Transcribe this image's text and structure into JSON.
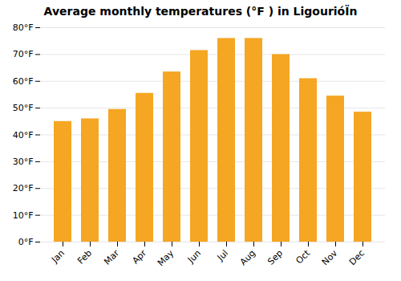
{
  "chart_data": {
    "type": "bar",
    "title": "Average monthly temperatures (°F ) in LigourióÏn",
    "categories": [
      "Jan",
      "Feb",
      "Mar",
      "Apr",
      "May",
      "Jun",
      "Jul",
      "Aug",
      "Sep",
      "Oct",
      "Nov",
      "Dec"
    ],
    "values": [
      45,
      46,
      49.5,
      55.5,
      63.5,
      71.5,
      76,
      76,
      70,
      61,
      54.5,
      48.5
    ],
    "color": "#F5A623",
    "ylim": [
      0,
      80
    ],
    "yticks": [
      {
        "value": 0,
        "label": "0°F"
      },
      {
        "value": 10,
        "label": "10°F"
      },
      {
        "value": 20,
        "label": "20°F"
      },
      {
        "value": 30,
        "label": "30°F"
      },
      {
        "value": 40,
        "label": "40°F"
      },
      {
        "value": 50,
        "label": "50°F"
      },
      {
        "value": 60,
        "label": "60°F"
      },
      {
        "value": 70,
        "label": "70°F"
      },
      {
        "value": 80,
        "label": "80°F"
      }
    ],
    "grid": true
  }
}
